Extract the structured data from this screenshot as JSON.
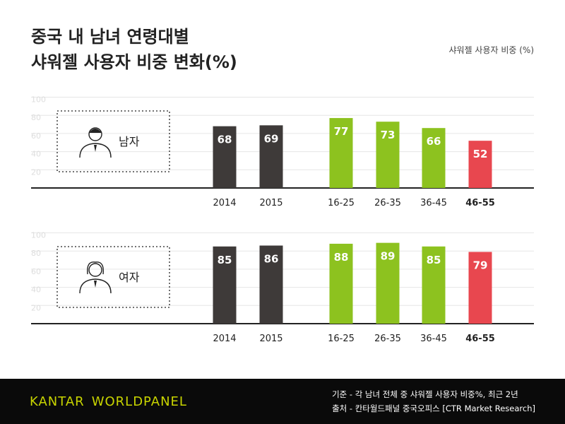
{
  "title": {
    "line1": "중국 내 남녀 연령대별",
    "line2": "샤워젤 사용자 비중 변화(%)"
  },
  "unit_label": "샤워젤 사용자 비중 (%)",
  "chart_data": [
    {
      "type": "bar",
      "panel_label": "남자",
      "categories": [
        "2014",
        "2015",
        "16-25",
        "26-35",
        "36-45",
        "46-55"
      ],
      "values": [
        68,
        69,
        77,
        73,
        66,
        52
      ],
      "ylim": [
        0,
        100
      ],
      "yticks": [
        20,
        40,
        60,
        80,
        100
      ],
      "bar_colors": [
        "#3e3a39",
        "#3e3a39",
        "#8dc21f",
        "#8dc21f",
        "#8dc21f",
        "#e8474f"
      ],
      "highlight_category": "46-55"
    },
    {
      "type": "bar",
      "panel_label": "여자",
      "categories": [
        "2014",
        "2015",
        "16-25",
        "26-35",
        "36-45",
        "46-55"
      ],
      "values": [
        85,
        86,
        88,
        89,
        85,
        79
      ],
      "ylim": [
        0,
        100
      ],
      "yticks": [
        20,
        40,
        60,
        80,
        100
      ],
      "bar_colors": [
        "#3e3a39",
        "#3e3a39",
        "#8dc21f",
        "#8dc21f",
        "#8dc21f",
        "#e8474f"
      ],
      "highlight_category": "46-55"
    }
  ],
  "footer": {
    "logo_part1": "KANTAR",
    "logo_part2": "WORLDPANEL",
    "note_basis": "기준 - 각 남녀 전체 중 샤워젤 사용자 비중%, 최근 2년",
    "note_source": "출처 - 칸타월드패널 중국오피스 [CTR Market Research]"
  },
  "colors": {
    "grid": "#e6e6e6",
    "axis": "#222222",
    "tick_label": "#dddddd",
    "logo": "#c8d400"
  },
  "icons": [
    "man-icon",
    "woman-icon"
  ]
}
